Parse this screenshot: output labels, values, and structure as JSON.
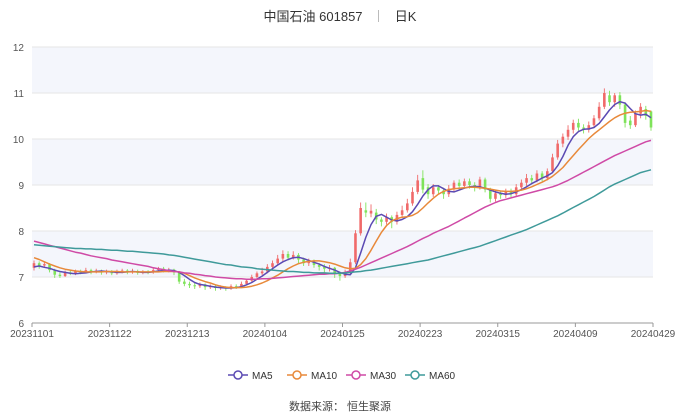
{
  "header": {
    "name": "中国石油",
    "code": "601857",
    "period": "日K"
  },
  "source": "数据来源： 恒生聚源",
  "colors": {
    "up": "#f06a6a",
    "down": "#7fe35a",
    "grid": "#e6e6e6",
    "band": "#f4f6fc"
  },
  "chart_data": {
    "type": "candlestick",
    "ylim": [
      6,
      12
    ],
    "yticks": [
      6,
      7,
      8,
      9,
      10,
      11,
      12
    ],
    "x_range": [
      "20231101",
      "20240429"
    ],
    "xtick_labels": [
      "20231101",
      "20231122",
      "20231213",
      "20240104",
      "20240125",
      "20240223",
      "20240315",
      "20240409",
      "20240429"
    ],
    "legend": [
      "MA5",
      "MA10",
      "MA30",
      "MA60"
    ],
    "legend_position": "bottom",
    "series": [
      {
        "name": "MA5",
        "color": "#5b4ab3",
        "values": [
          7.22,
          7.24,
          7.21,
          7.19,
          7.15,
          7.12,
          7.1,
          7.08,
          7.07,
          7.08,
          7.09,
          7.11,
          7.12,
          7.13,
          7.12,
          7.11,
          7.1,
          7.1,
          7.11,
          7.12,
          7.11,
          7.1,
          7.1,
          7.11,
          7.13,
          7.14,
          7.15,
          7.14,
          7.1,
          7.03,
          6.95,
          6.88,
          6.84,
          6.82,
          6.8,
          6.78,
          6.77,
          6.76,
          6.76,
          6.77,
          6.79,
          6.83,
          6.88,
          6.95,
          7.02,
          7.1,
          7.18,
          7.26,
          7.33,
          7.38,
          7.42,
          7.43,
          7.4,
          7.36,
          7.32,
          7.28,
          7.23,
          7.19,
          7.15,
          7.1,
          7.06,
          7.05,
          7.2,
          7.52,
          7.86,
          8.14,
          8.32,
          8.36,
          8.3,
          8.24,
          8.22,
          8.25,
          8.31,
          8.42,
          8.58,
          8.76,
          8.9,
          8.98,
          8.98,
          8.92,
          8.86,
          8.85,
          8.89,
          8.93,
          8.96,
          8.97,
          8.96,
          8.93,
          8.89,
          8.85,
          8.82,
          8.8,
          8.81,
          8.85,
          8.9,
          8.96,
          9.03,
          9.09,
          9.15,
          9.2,
          9.27,
          9.42,
          9.62,
          9.86,
          10.05,
          10.16,
          10.21,
          10.22,
          10.25,
          10.34,
          10.48,
          10.63,
          10.75,
          10.81,
          10.78,
          10.66,
          10.55,
          10.52,
          10.54,
          10.46
        ]
      },
      {
        "name": "MA10",
        "color": "#e8893a",
        "values": [
          7.42,
          7.38,
          7.33,
          7.28,
          7.24,
          7.2,
          7.17,
          7.15,
          7.13,
          7.12,
          7.11,
          7.11,
          7.11,
          7.11,
          7.12,
          7.12,
          7.12,
          7.11,
          7.11,
          7.11,
          7.11,
          7.11,
          7.11,
          7.11,
          7.11,
          7.12,
          7.12,
          7.12,
          7.11,
          7.08,
          7.03,
          6.98,
          6.94,
          6.9,
          6.87,
          6.83,
          6.8,
          6.78,
          6.77,
          6.77,
          6.77,
          6.78,
          6.8,
          6.83,
          6.87,
          6.92,
          6.98,
          7.04,
          7.11,
          7.18,
          7.24,
          7.29,
          7.32,
          7.34,
          7.35,
          7.35,
          7.33,
          7.31,
          7.28,
          7.24,
          7.2,
          7.18,
          7.19,
          7.27,
          7.4,
          7.58,
          7.78,
          7.97,
          8.12,
          8.22,
          8.27,
          8.3,
          8.31,
          8.34,
          8.4,
          8.5,
          8.61,
          8.71,
          8.8,
          8.86,
          8.9,
          8.92,
          8.93,
          8.94,
          8.95,
          8.95,
          8.94,
          8.93,
          8.91,
          8.89,
          8.87,
          8.86,
          8.86,
          8.87,
          8.89,
          8.92,
          8.96,
          9.01,
          9.06,
          9.12,
          9.19,
          9.28,
          9.38,
          9.51,
          9.64,
          9.77,
          9.89,
          10.01,
          10.11,
          10.2,
          10.29,
          10.38,
          10.46,
          10.52,
          10.56,
          10.58,
          10.59,
          10.6,
          10.62,
          10.6
        ]
      },
      {
        "name": "MA30",
        "color": "#cf4aa6",
        "values": [
          7.78,
          7.75,
          7.72,
          7.69,
          7.66,
          7.63,
          7.6,
          7.57,
          7.54,
          7.52,
          7.49,
          7.46,
          7.44,
          7.42,
          7.4,
          7.37,
          7.35,
          7.33,
          7.31,
          7.29,
          7.27,
          7.25,
          7.23,
          7.2,
          7.18,
          7.16,
          7.14,
          7.12,
          7.11,
          7.09,
          7.08,
          7.06,
          7.05,
          7.03,
          7.02,
          7.0,
          6.99,
          6.98,
          6.97,
          6.96,
          6.96,
          6.95,
          6.95,
          6.95,
          6.96,
          6.96,
          6.97,
          6.98,
          6.99,
          7.0,
          7.01,
          7.02,
          7.03,
          7.04,
          7.05,
          7.06,
          7.06,
          7.07,
          7.07,
          7.08,
          7.1,
          7.13,
          7.17,
          7.21,
          7.26,
          7.31,
          7.36,
          7.41,
          7.46,
          7.51,
          7.56,
          7.61,
          7.66,
          7.72,
          7.78,
          7.84,
          7.89,
          7.95,
          8.0,
          8.05,
          8.1,
          8.16,
          8.22,
          8.28,
          8.34,
          8.4,
          8.46,
          8.52,
          8.57,
          8.62,
          8.66,
          8.69,
          8.72,
          8.75,
          8.78,
          8.81,
          8.84,
          8.87,
          8.9,
          8.93,
          8.96,
          9.0,
          9.05,
          9.1,
          9.16,
          9.22,
          9.28,
          9.34,
          9.4,
          9.46,
          9.52,
          9.58,
          9.64,
          9.69,
          9.74,
          9.79,
          9.84,
          9.89,
          9.94,
          9.97
        ]
      },
      {
        "name": "MA60",
        "color": "#3f9a9a",
        "values": [
          7.7,
          7.69,
          7.68,
          7.67,
          7.66,
          7.65,
          7.64,
          7.63,
          7.62,
          7.62,
          7.61,
          7.61,
          7.6,
          7.6,
          7.59,
          7.58,
          7.58,
          7.57,
          7.56,
          7.56,
          7.55,
          7.54,
          7.53,
          7.52,
          7.51,
          7.5,
          7.48,
          7.47,
          7.45,
          7.43,
          7.41,
          7.39,
          7.37,
          7.35,
          7.33,
          7.31,
          7.29,
          7.27,
          7.26,
          7.24,
          7.22,
          7.21,
          7.2,
          7.18,
          7.17,
          7.16,
          7.15,
          7.14,
          7.13,
          7.12,
          7.12,
          7.11,
          7.1,
          7.1,
          7.09,
          7.09,
          7.09,
          7.08,
          7.08,
          7.08,
          7.09,
          7.1,
          7.11,
          7.12,
          7.14,
          7.15,
          7.17,
          7.19,
          7.21,
          7.23,
          7.25,
          7.27,
          7.29,
          7.31,
          7.33,
          7.35,
          7.37,
          7.4,
          7.43,
          7.46,
          7.49,
          7.52,
          7.55,
          7.58,
          7.61,
          7.64,
          7.67,
          7.71,
          7.75,
          7.79,
          7.83,
          7.87,
          7.91,
          7.95,
          7.99,
          8.03,
          8.08,
          8.13,
          8.18,
          8.23,
          8.28,
          8.33,
          8.39,
          8.45,
          8.51,
          8.57,
          8.63,
          8.69,
          8.75,
          8.82,
          8.89,
          8.96,
          9.02,
          9.07,
          9.12,
          9.17,
          9.22,
          9.27,
          9.3,
          9.33
        ]
      }
    ],
    "candles": [
      {
        "o": 7.2,
        "c": 7.3,
        "h": 7.36,
        "l": 7.14
      },
      {
        "o": 7.3,
        "c": 7.25,
        "h": 7.34,
        "l": 7.18
      },
      {
        "o": 7.25,
        "c": 7.28,
        "h": 7.33,
        "l": 7.2
      },
      {
        "o": 7.28,
        "c": 7.15,
        "h": 7.3,
        "l": 7.1
      },
      {
        "o": 7.15,
        "c": 7.05,
        "h": 7.18,
        "l": 6.98
      },
      {
        "o": 7.05,
        "c": 7.02,
        "h": 7.1,
        "l": 6.98
      },
      {
        "o": 7.02,
        "c": 7.1,
        "h": 7.14,
        "l": 7.0
      },
      {
        "o": 7.1,
        "c": 7.08,
        "h": 7.14,
        "l": 7.04
      },
      {
        "o": 7.08,
        "c": 7.12,
        "h": 7.16,
        "l": 7.04
      },
      {
        "o": 7.12,
        "c": 7.1,
        "h": 7.16,
        "l": 7.06
      },
      {
        "o": 7.1,
        "c": 7.15,
        "h": 7.2,
        "l": 7.08
      },
      {
        "o": 7.15,
        "c": 7.12,
        "h": 7.18,
        "l": 7.06
      },
      {
        "o": 7.12,
        "c": 7.14,
        "h": 7.18,
        "l": 7.08
      },
      {
        "o": 7.14,
        "c": 7.1,
        "h": 7.16,
        "l": 7.05
      },
      {
        "o": 7.1,
        "c": 7.12,
        "h": 7.16,
        "l": 7.06
      },
      {
        "o": 7.12,
        "c": 7.08,
        "h": 7.15,
        "l": 7.04
      },
      {
        "o": 7.08,
        "c": 7.12,
        "h": 7.16,
        "l": 7.05
      },
      {
        "o": 7.12,
        "c": 7.14,
        "h": 7.18,
        "l": 7.08
      },
      {
        "o": 7.14,
        "c": 7.1,
        "h": 7.17,
        "l": 7.06
      },
      {
        "o": 7.1,
        "c": 7.13,
        "h": 7.18,
        "l": 7.07
      },
      {
        "o": 7.13,
        "c": 7.09,
        "h": 7.16,
        "l": 7.05
      },
      {
        "o": 7.09,
        "c": 7.12,
        "h": 7.15,
        "l": 7.06
      },
      {
        "o": 7.12,
        "c": 7.1,
        "h": 7.15,
        "l": 7.06
      },
      {
        "o": 7.1,
        "c": 7.15,
        "h": 7.19,
        "l": 7.07
      },
      {
        "o": 7.15,
        "c": 7.18,
        "h": 7.22,
        "l": 7.1
      },
      {
        "o": 7.18,
        "c": 7.14,
        "h": 7.22,
        "l": 7.1
      },
      {
        "o": 7.14,
        "c": 7.16,
        "h": 7.2,
        "l": 7.1
      },
      {
        "o": 7.16,
        "c": 7.1,
        "h": 7.18,
        "l": 7.04
      },
      {
        "o": 7.1,
        "c": 6.9,
        "h": 7.12,
        "l": 6.85
      },
      {
        "o": 6.9,
        "c": 6.85,
        "h": 6.96,
        "l": 6.8
      },
      {
        "o": 6.85,
        "c": 6.82,
        "h": 6.9,
        "l": 6.76
      },
      {
        "o": 6.82,
        "c": 6.8,
        "h": 6.88,
        "l": 6.74
      },
      {
        "o": 6.8,
        "c": 6.84,
        "h": 6.88,
        "l": 6.76
      },
      {
        "o": 6.84,
        "c": 6.78,
        "h": 6.86,
        "l": 6.72
      },
      {
        "o": 6.78,
        "c": 6.8,
        "h": 6.84,
        "l": 6.74
      },
      {
        "o": 6.8,
        "c": 6.76,
        "h": 6.82,
        "l": 6.7
      },
      {
        "o": 6.76,
        "c": 6.78,
        "h": 6.82,
        "l": 6.72
      },
      {
        "o": 6.78,
        "c": 6.75,
        "h": 6.8,
        "l": 6.7
      },
      {
        "o": 6.75,
        "c": 6.8,
        "h": 6.84,
        "l": 6.72
      },
      {
        "o": 6.8,
        "c": 6.78,
        "h": 6.84,
        "l": 6.74
      },
      {
        "o": 6.78,
        "c": 6.85,
        "h": 6.9,
        "l": 6.76
      },
      {
        "o": 6.85,
        "c": 6.92,
        "h": 6.96,
        "l": 6.82
      },
      {
        "o": 6.92,
        "c": 7.0,
        "h": 7.05,
        "l": 6.88
      },
      {
        "o": 7.0,
        "c": 7.08,
        "h": 7.12,
        "l": 6.96
      },
      {
        "o": 7.08,
        "c": 7.12,
        "h": 7.2,
        "l": 7.04
      },
      {
        "o": 7.12,
        "c": 7.22,
        "h": 7.28,
        "l": 7.08
      },
      {
        "o": 7.22,
        "c": 7.3,
        "h": 7.36,
        "l": 7.16
      },
      {
        "o": 7.3,
        "c": 7.4,
        "h": 7.48,
        "l": 7.26
      },
      {
        "o": 7.4,
        "c": 7.5,
        "h": 7.58,
        "l": 7.34
      },
      {
        "o": 7.5,
        "c": 7.42,
        "h": 7.56,
        "l": 7.36
      },
      {
        "o": 7.42,
        "c": 7.48,
        "h": 7.56,
        "l": 7.38
      },
      {
        "o": 7.48,
        "c": 7.38,
        "h": 7.52,
        "l": 7.3
      },
      {
        "o": 7.38,
        "c": 7.3,
        "h": 7.42,
        "l": 7.24
      },
      {
        "o": 7.3,
        "c": 7.34,
        "h": 7.4,
        "l": 7.24
      },
      {
        "o": 7.34,
        "c": 7.26,
        "h": 7.38,
        "l": 7.2
      },
      {
        "o": 7.26,
        "c": 7.22,
        "h": 7.3,
        "l": 7.14
      },
      {
        "o": 7.22,
        "c": 7.18,
        "h": 7.28,
        "l": 7.1
      },
      {
        "o": 7.18,
        "c": 7.2,
        "h": 7.26,
        "l": 7.12
      },
      {
        "o": 7.2,
        "c": 7.08,
        "h": 7.22,
        "l": 6.98
      },
      {
        "o": 7.08,
        "c": 7.02,
        "h": 7.12,
        "l": 6.92
      },
      {
        "o": 7.02,
        "c": 7.1,
        "h": 7.16,
        "l": 6.98
      },
      {
        "o": 7.1,
        "c": 7.32,
        "h": 7.4,
        "l": 7.06
      },
      {
        "o": 7.32,
        "c": 7.95,
        "h": 8.02,
        "l": 7.28
      },
      {
        "o": 7.95,
        "c": 8.5,
        "h": 8.62,
        "l": 7.9
      },
      {
        "o": 8.45,
        "c": 8.4,
        "h": 8.62,
        "l": 8.3
      },
      {
        "o": 8.38,
        "c": 8.44,
        "h": 8.58,
        "l": 8.3
      },
      {
        "o": 8.4,
        "c": 8.25,
        "h": 8.48,
        "l": 8.15
      },
      {
        "o": 8.25,
        "c": 8.2,
        "h": 8.3,
        "l": 8.1
      },
      {
        "o": 8.2,
        "c": 8.3,
        "h": 8.38,
        "l": 8.14
      },
      {
        "o": 8.3,
        "c": 8.2,
        "h": 8.34,
        "l": 8.06
      },
      {
        "o": 8.2,
        "c": 8.35,
        "h": 8.42,
        "l": 8.14
      },
      {
        "o": 8.35,
        "c": 8.45,
        "h": 8.55,
        "l": 8.28
      },
      {
        "o": 8.45,
        "c": 8.6,
        "h": 8.7,
        "l": 8.4
      },
      {
        "o": 8.6,
        "c": 8.85,
        "h": 8.95,
        "l": 8.55
      },
      {
        "o": 8.85,
        "c": 9.1,
        "h": 9.22,
        "l": 8.8
      },
      {
        "o": 9.15,
        "c": 8.9,
        "h": 9.32,
        "l": 8.82
      },
      {
        "o": 8.95,
        "c": 8.8,
        "h": 9.02,
        "l": 8.7
      },
      {
        "o": 8.8,
        "c": 8.95,
        "h": 9.02,
        "l": 8.74
      },
      {
        "o": 8.95,
        "c": 8.88,
        "h": 9.0,
        "l": 8.8
      },
      {
        "o": 8.88,
        "c": 8.8,
        "h": 8.94,
        "l": 8.7
      },
      {
        "o": 8.8,
        "c": 8.92,
        "h": 9.0,
        "l": 8.74
      },
      {
        "o": 8.92,
        "c": 9.05,
        "h": 9.1,
        "l": 8.86
      },
      {
        "o": 9.05,
        "c": 8.98,
        "h": 9.12,
        "l": 8.9
      },
      {
        "o": 8.98,
        "c": 9.08,
        "h": 9.14,
        "l": 8.92
      },
      {
        "o": 9.08,
        "c": 9.0,
        "h": 9.14,
        "l": 8.92
      },
      {
        "o": 9.0,
        "c": 8.95,
        "h": 9.06,
        "l": 8.86
      },
      {
        "o": 8.95,
        "c": 9.12,
        "h": 9.18,
        "l": 8.9
      },
      {
        "o": 9.12,
        "c": 8.9,
        "h": 9.16,
        "l": 8.84
      },
      {
        "o": 8.9,
        "c": 8.7,
        "h": 8.94,
        "l": 8.62
      },
      {
        "o": 8.7,
        "c": 8.82,
        "h": 8.9,
        "l": 8.64
      },
      {
        "o": 8.82,
        "c": 8.78,
        "h": 8.88,
        "l": 8.7
      },
      {
        "o": 8.78,
        "c": 8.85,
        "h": 8.92,
        "l": 8.72
      },
      {
        "o": 8.85,
        "c": 8.8,
        "h": 8.92,
        "l": 8.74
      },
      {
        "o": 8.8,
        "c": 8.95,
        "h": 9.02,
        "l": 8.76
      },
      {
        "o": 8.95,
        "c": 9.05,
        "h": 9.12,
        "l": 8.9
      },
      {
        "o": 9.05,
        "c": 9.15,
        "h": 9.24,
        "l": 8.98
      },
      {
        "o": 9.15,
        "c": 9.1,
        "h": 9.22,
        "l": 9.02
      },
      {
        "o": 9.1,
        "c": 9.25,
        "h": 9.32,
        "l": 9.06
      },
      {
        "o": 9.25,
        "c": 9.15,
        "h": 9.3,
        "l": 9.08
      },
      {
        "o": 9.15,
        "c": 9.3,
        "h": 9.36,
        "l": 9.1
      },
      {
        "o": 9.3,
        "c": 9.6,
        "h": 9.68,
        "l": 9.26
      },
      {
        "o": 9.6,
        "c": 9.9,
        "h": 9.98,
        "l": 9.55
      },
      {
        "o": 9.9,
        "c": 10.05,
        "h": 10.12,
        "l": 9.82
      },
      {
        "o": 10.05,
        "c": 10.2,
        "h": 10.3,
        "l": 9.98
      },
      {
        "o": 10.2,
        "c": 10.35,
        "h": 10.42,
        "l": 10.12
      },
      {
        "o": 10.35,
        "c": 10.25,
        "h": 10.44,
        "l": 10.18
      },
      {
        "o": 10.25,
        "c": 10.2,
        "h": 10.32,
        "l": 10.12
      },
      {
        "o": 10.2,
        "c": 10.3,
        "h": 10.38,
        "l": 10.14
      },
      {
        "o": 10.3,
        "c": 10.45,
        "h": 10.52,
        "l": 10.24
      },
      {
        "o": 10.45,
        "c": 10.7,
        "h": 10.8,
        "l": 10.4
      },
      {
        "o": 10.7,
        "c": 11.0,
        "h": 11.1,
        "l": 10.65
      },
      {
        "o": 10.95,
        "c": 10.8,
        "h": 11.05,
        "l": 10.72
      },
      {
        "o": 10.8,
        "c": 10.95,
        "h": 11.0,
        "l": 10.7
      },
      {
        "o": 10.95,
        "c": 10.75,
        "h": 11.02,
        "l": 10.65
      },
      {
        "o": 10.75,
        "c": 10.35,
        "h": 10.8,
        "l": 10.25
      },
      {
        "o": 10.4,
        "c": 10.3,
        "h": 10.5,
        "l": 10.22
      },
      {
        "o": 10.3,
        "c": 10.55,
        "h": 10.62,
        "l": 10.26
      },
      {
        "o": 10.55,
        "c": 10.7,
        "h": 10.78,
        "l": 10.45
      },
      {
        "o": 10.65,
        "c": 10.5,
        "h": 10.72,
        "l": 10.42
      },
      {
        "o": 10.6,
        "c": 10.25,
        "h": 10.62,
        "l": 10.18
      }
    ]
  }
}
